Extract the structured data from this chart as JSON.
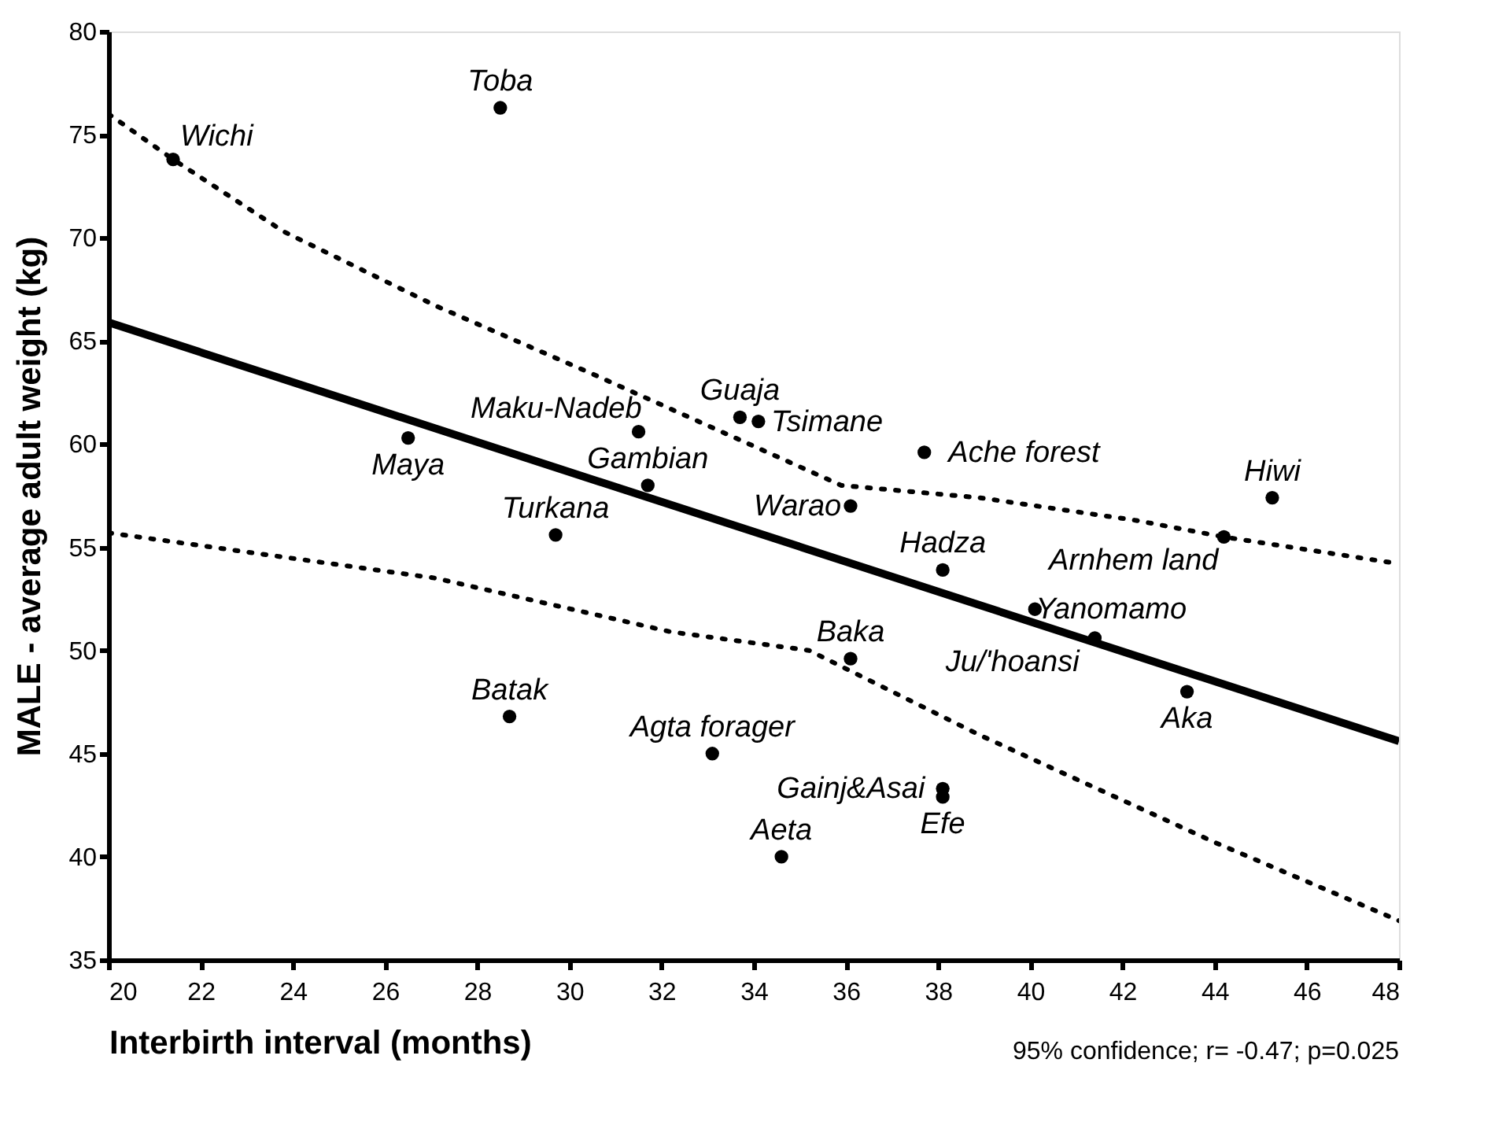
{
  "chart_data": {
    "type": "scatter",
    "marker": "circle",
    "xlabel": "Interbirth interval (months)",
    "ylabel": "MALE - average adult weight (kg)",
    "xlim": [
      20,
      48
    ],
    "xticks": [
      20,
      22,
      24,
      26,
      28,
      30,
      32,
      34,
      36,
      38,
      40,
      42,
      44,
      46,
      48
    ],
    "ylim": [
      35,
      80
    ],
    "yticks": [
      35,
      40,
      45,
      50,
      55,
      60,
      65,
      70,
      75,
      80
    ],
    "grid": false,
    "legend": false,
    "series": [
      {
        "name": "Toba",
        "color": "#000000",
        "x": [
          28.5
        ],
        "values": [
          76.3
        ]
      },
      {
        "name": "Wichi",
        "color": "#000000",
        "x": [
          21.4
        ],
        "values": [
          73.8
        ]
      },
      {
        "name": "Maya",
        "color": "#000000",
        "x": [
          26.5
        ],
        "values": [
          60.3
        ]
      },
      {
        "name": "Maku-Nadeb",
        "color": "#000000",
        "x": [
          31.5
        ],
        "values": [
          60.6
        ]
      },
      {
        "name": "Tsimane",
        "color": "#000000",
        "x": [
          34.1
        ],
        "values": [
          61.1
        ]
      },
      {
        "name": "Guaja",
        "color": "#000000",
        "x": [
          33.7
        ],
        "values": [
          61.3
        ]
      },
      {
        "name": "Gambian",
        "color": "#000000",
        "x": [
          31.7
        ],
        "values": [
          58.0
        ]
      },
      {
        "name": "Turkana",
        "color": "#000000",
        "x": [
          29.7
        ],
        "values": [
          55.6
        ]
      },
      {
        "name": "Warao",
        "color": "#000000",
        "x": [
          36.1
        ],
        "values": [
          57.0
        ]
      },
      {
        "name": "Ache forest",
        "color": "#000000",
        "x": [
          37.7
        ],
        "values": [
          59.6
        ]
      },
      {
        "name": "Hiwi",
        "color": "#000000",
        "x": [
          45.25
        ],
        "values": [
          57.4
        ]
      },
      {
        "name": "Arnhem land",
        "color": "#000000",
        "x": [
          44.2
        ],
        "values": [
          55.5
        ]
      },
      {
        "name": "Hadza",
        "color": "#000000",
        "x": [
          38.1
        ],
        "values": [
          53.9
        ]
      },
      {
        "name": "Yanomamo",
        "color": "#000000",
        "x": [
          40.1
        ],
        "values": [
          52.0
        ]
      },
      {
        "name": "Ju/'hoansi",
        "color": "#000000",
        "x": [
          41.4
        ],
        "values": [
          50.6
        ]
      },
      {
        "name": "Aka",
        "color": "#000000",
        "x": [
          43.4
        ],
        "values": [
          48.0
        ]
      },
      {
        "name": "Baka",
        "color": "#000000",
        "x": [
          36.1
        ],
        "values": [
          49.6
        ]
      },
      {
        "name": "Batak",
        "color": "#000000",
        "x": [
          28.7
        ],
        "values": [
          46.8
        ]
      },
      {
        "name": "Agta forager",
        "color": "#000000",
        "x": [
          33.1
        ],
        "values": [
          45.0
        ]
      },
      {
        "name": "Gainj&Asai",
        "color": "#000000",
        "x": [
          38.1
        ],
        "values": [
          43.3
        ]
      },
      {
        "name": "Efe",
        "color": "#000000",
        "x": [
          38.1
        ],
        "values": [
          42.9
        ]
      },
      {
        "name": "Aeta",
        "color": "#000000",
        "x": [
          34.6
        ],
        "values": [
          40.0
        ]
      },
      {
        "type": "line",
        "marker": "none",
        "line_style": "solid",
        "color": "#000000",
        "x": [
          20,
          48
        ],
        "values": [
          65.9,
          45.6
        ]
      },
      {
        "type": "line",
        "marker": "none",
        "line_style": "dotted",
        "color": "#000000",
        "x": [
          20,
          21.4,
          23.8,
          27.1,
          30.5,
          33.9,
          35.9,
          38.9,
          42.3,
          44.2,
          48
        ],
        "values": [
          76.0,
          73.8,
          70.3,
          66.7,
          63.4,
          60.0,
          58.0,
          57.4,
          56.3,
          55.5,
          54.2
        ]
      },
      {
        "type": "line",
        "marker": "none",
        "line_style": "dotted",
        "color": "#000000",
        "x": [
          20,
          27.1,
          32.2,
          35.2,
          38.9,
          44,
          48
        ],
        "values": [
          55.7,
          53.5,
          50.9,
          50.0,
          45.9,
          40.7,
          36.9
        ]
      }
    ],
    "annotations": [
      "95% confidence; r= -0.47; p=0.025"
    ]
  }
}
